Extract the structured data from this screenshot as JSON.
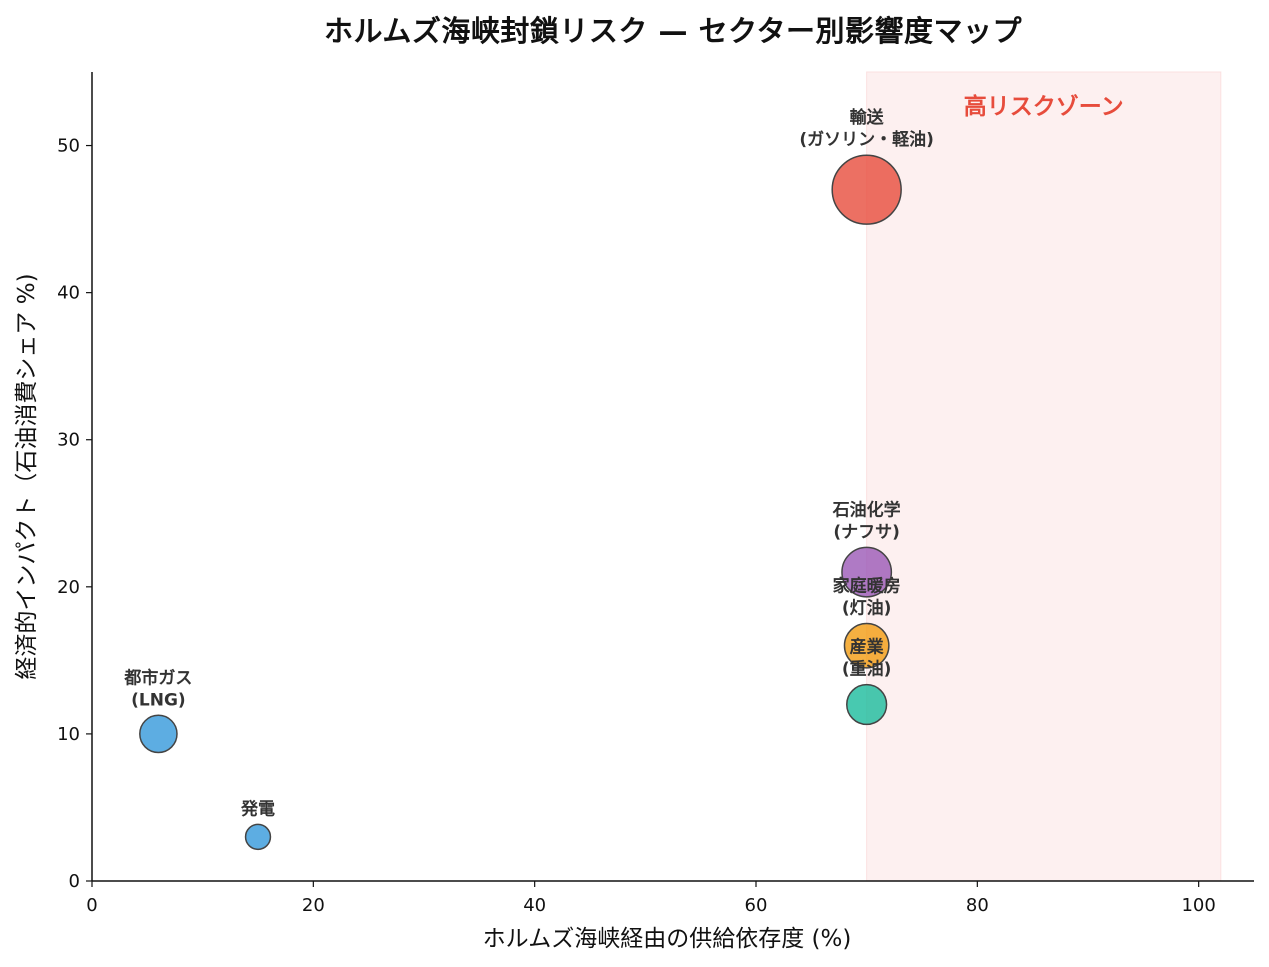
{
  "chart_data": {
    "type": "scatter",
    "title": "ホルムズ海峡封鎖リスク — セクター別影響度マップ",
    "xlabel": "ホルムズ海峡経由の供給依存度 (%)",
    "ylabel": "経済的インパクト（石油消費シェア %)",
    "xlim": [
      0,
      105
    ],
    "ylim": [
      0,
      55
    ],
    "xticks": [
      0,
      20,
      40,
      60,
      80,
      100
    ],
    "yticks": [
      0,
      10,
      20,
      30,
      40,
      50
    ],
    "grid": false,
    "zone": {
      "label": "高リスクゾーン",
      "x_range": [
        70,
        102
      ],
      "fill_color": "#fdf0f0",
      "label_color": "#e74c3c"
    },
    "points": [
      {
        "label": [
          "輸送",
          "(ガソリン・軽油)"
        ],
        "x": 70,
        "y": 47,
        "size": 47,
        "color": "#e74c3c"
      },
      {
        "label": [
          "石油化学",
          "(ナフサ)"
        ],
        "x": 70,
        "y": 21,
        "size": 21,
        "color": "#9b59b6"
      },
      {
        "label": [
          "家庭暖房",
          "(灯油)"
        ],
        "x": 70,
        "y": 16,
        "size": 16,
        "color": "#f39c12"
      },
      {
        "label": [
          "産業",
          "(重油)"
        ],
        "x": 70,
        "y": 12,
        "size": 12,
        "color": "#1abc9c"
      },
      {
        "label": [
          "都市ガス",
          "(LNG)"
        ],
        "x": 6,
        "y": 10,
        "size": 10,
        "color": "#3498db"
      },
      {
        "label": [
          "発電"
        ],
        "x": 15,
        "y": 3,
        "size": 3,
        "color": "#3498db"
      }
    ]
  }
}
